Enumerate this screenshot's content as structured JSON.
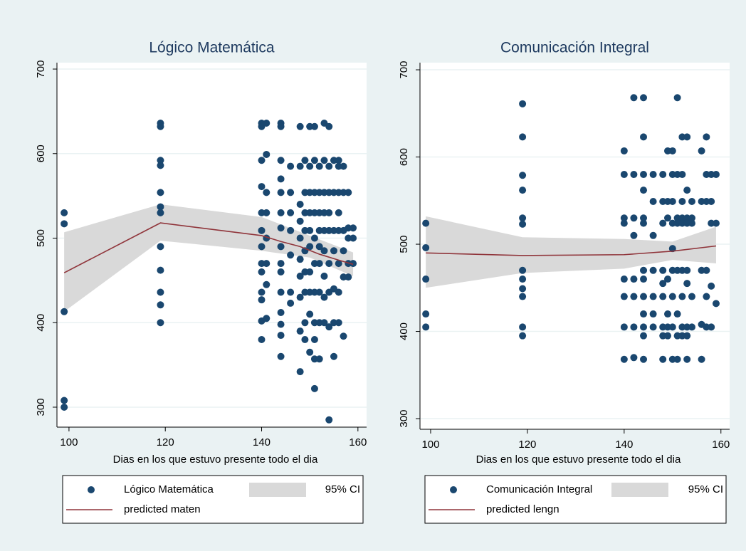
{
  "chart_data": [
    {
      "type": "scatter",
      "title": "Lógico Matemática",
      "xlabel": "Dias en los que estuvo presente todo el dia",
      "xlim": [
        97.5,
        161.8
      ],
      "ylim": [
        276.4,
        707.6
      ],
      "xticks": [
        100,
        120,
        140,
        160
      ],
      "yticks": [
        300,
        400,
        500,
        600,
        700
      ],
      "grid": true,
      "series": [
        {
          "name": "Lógico Matemática",
          "type": "scatter",
          "color": "#1a476f",
          "x": [
            99,
            99,
            99,
            99,
            99,
            119,
            119,
            119,
            119,
            119,
            119,
            119,
            119,
            119,
            119,
            119,
            119,
            140,
            140,
            140,
            140,
            140,
            140,
            140,
            140,
            140,
            140,
            140,
            140,
            140,
            141,
            141,
            141,
            141,
            141,
            141,
            141,
            141,
            144,
            144,
            144,
            144,
            144,
            144,
            144,
            144,
            144,
            144,
            144,
            144,
            144,
            144,
            144,
            146,
            146,
            146,
            146,
            146,
            146,
            146,
            148,
            148,
            148,
            148,
            148,
            148,
            148,
            148,
            148,
            148,
            149,
            149,
            149,
            149,
            149,
            149,
            149,
            149,
            149,
            150,
            150,
            150,
            150,
            150,
            150,
            150,
            150,
            150,
            150,
            151,
            151,
            151,
            151,
            151,
            151,
            151,
            151,
            151,
            151,
            151,
            152,
            152,
            152,
            152,
            152,
            152,
            152,
            152,
            152,
            153,
            153,
            153,
            153,
            153,
            153,
            153,
            153,
            153,
            154,
            154,
            154,
            154,
            154,
            154,
            154,
            154,
            154,
            155,
            155,
            155,
            155,
            155,
            155,
            155,
            156,
            156,
            156,
            156,
            156,
            156,
            156,
            156,
            157,
            157,
            157,
            157,
            157,
            157,
            158,
            158,
            158,
            158,
            158,
            159,
            159,
            159
          ],
          "values": [
            530,
            517,
            413,
            308,
            300,
            636,
            632,
            592,
            586,
            554,
            537,
            530,
            490,
            462,
            436,
            421,
            400,
            636,
            632,
            592,
            561,
            530,
            509,
            490,
            470,
            460,
            436,
            427,
            402,
            380,
            636,
            599,
            554,
            530,
            500,
            470,
            445,
            405,
            636,
            632,
            592,
            570,
            554,
            530,
            512,
            490,
            470,
            460,
            436,
            412,
            398,
            385,
            360,
            585,
            554,
            530,
            509,
            480,
            436,
            423,
            632,
            585,
            540,
            520,
            500,
            475,
            455,
            430,
            390,
            342,
            592,
            554,
            530,
            509,
            485,
            460,
            436,
            400,
            380,
            632,
            585,
            554,
            530,
            509,
            490,
            460,
            436,
            410,
            365,
            632,
            592,
            554,
            530,
            500,
            470,
            436,
            400,
            380,
            357,
            322,
            585,
            554,
            530,
            509,
            490,
            470,
            436,
            400,
            357,
            636,
            592,
            554,
            530,
            509,
            485,
            455,
            430,
            400,
            632,
            585,
            554,
            530,
            509,
            470,
            436,
            395,
            285,
            592,
            554,
            509,
            485,
            440,
            400,
            360,
            592,
            585,
            554,
            530,
            509,
            470,
            436,
            400,
            585,
            554,
            509,
            485,
            454,
            384,
            554,
            512,
            500,
            470,
            454,
            512,
            500,
            470
          ]
        },
        {
          "name": "95% CI",
          "type": "area",
          "color": "#d9d9d9",
          "x": [
            99,
            119,
            140,
            150,
            159
          ],
          "lower": [
            413,
            497,
            485,
            477,
            455
          ],
          "upper": [
            507,
            540,
            525,
            503,
            483
          ]
        },
        {
          "name": "predicted maten",
          "type": "line",
          "color": "#90353b",
          "x": [
            99,
            119,
            140,
            144,
            148,
            152,
            156,
            159
          ],
          "values": [
            459,
            518,
            503,
            496,
            490,
            481,
            474,
            469
          ]
        }
      ]
    },
    {
      "type": "scatter",
      "title": "Comunicación Integral",
      "xlabel": "Dias en los que estuvo presente todo el dia",
      "xlim": [
        97.8,
        161.8
      ],
      "ylim": [
        287.8,
        708.2
      ],
      "xticks": [
        100,
        120,
        140,
        160
      ],
      "yticks": [
        300,
        400,
        500,
        600,
        700
      ],
      "grid": true,
      "series": [
        {
          "name": "Comunicación Integral",
          "type": "scatter",
          "color": "#1a476f",
          "x": [
            99,
            99,
            99,
            99,
            99,
            119,
            119,
            119,
            119,
            119,
            119,
            119,
            119,
            119,
            119,
            119,
            119,
            140,
            140,
            140,
            140,
            140,
            140,
            140,
            140,
            142,
            142,
            142,
            142,
            142,
            142,
            142,
            142,
            144,
            144,
            144,
            144,
            144,
            144,
            144,
            144,
            144,
            144,
            144,
            144,
            144,
            146,
            146,
            146,
            146,
            146,
            146,
            146,
            148,
            148,
            148,
            148,
            148,
            148,
            148,
            148,
            148,
            149,
            149,
            149,
            149,
            149,
            149,
            149,
            150,
            150,
            150,
            150,
            150,
            150,
            150,
            150,
            150,
            151,
            151,
            151,
            151,
            151,
            151,
            151,
            151,
            152,
            152,
            152,
            152,
            152,
            152,
            152,
            152,
            152,
            153,
            153,
            153,
            153,
            153,
            153,
            153,
            153,
            153,
            154,
            154,
            154,
            154,
            154,
            156,
            156,
            156,
            156,
            156,
            157,
            157,
            157,
            157,
            157,
            157,
            158,
            158,
            158,
            158,
            158,
            159,
            159,
            159
          ],
          "values": [
            524,
            496,
            460,
            420,
            405,
            661,
            623,
            579,
            562,
            530,
            523,
            470,
            460,
            449,
            440,
            405,
            395,
            607,
            580,
            530,
            524,
            460,
            440,
            405,
            368,
            668,
            580,
            530,
            510,
            460,
            440,
            405,
            370,
            668,
            623,
            580,
            562,
            530,
            524,
            470,
            460,
            440,
            420,
            405,
            395,
            368,
            580,
            549,
            510,
            470,
            440,
            420,
            405,
            580,
            549,
            524,
            470,
            455,
            440,
            405,
            395,
            368,
            607,
            549,
            530,
            460,
            420,
            405,
            395,
            607,
            580,
            549,
            524,
            495,
            470,
            440,
            405,
            368,
            668,
            580,
            530,
            524,
            470,
            420,
            395,
            368,
            623,
            580,
            549,
            530,
            524,
            470,
            440,
            405,
            395,
            623,
            562,
            530,
            524,
            470,
            455,
            405,
            395,
            368,
            549,
            530,
            524,
            440,
            405,
            607,
            549,
            470,
            408,
            368,
            623,
            580,
            549,
            470,
            440,
            405,
            580,
            549,
            524,
            452,
            405,
            580,
            524,
            432
          ]
        },
        {
          "name": "95% CI",
          "type": "area",
          "color": "#d9d9d9",
          "x": [
            99,
            119,
            140,
            150,
            159
          ],
          "lower": [
            450,
            467,
            472,
            482,
            478
          ],
          "upper": [
            532,
            508,
            506,
            503,
            520
          ]
        },
        {
          "name": "predicted lengn",
          "type": "line",
          "color": "#90353b",
          "x": [
            99,
            119,
            140,
            150,
            159
          ],
          "values": [
            490,
            487,
            488,
            492,
            498
          ]
        }
      ]
    }
  ]
}
